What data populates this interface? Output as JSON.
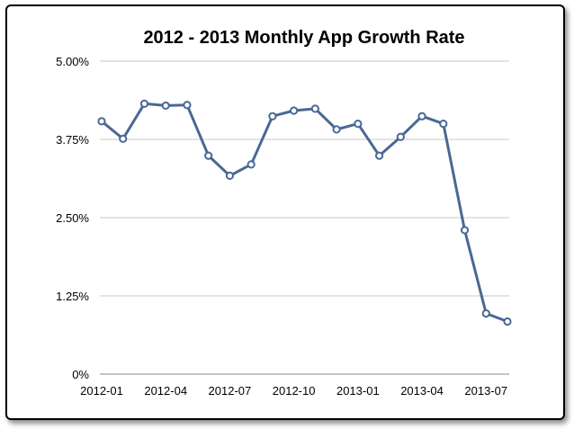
{
  "chart_data": {
    "type": "line",
    "title": "2012 - 2013 Monthly App Growth Rate",
    "xlabel": "",
    "ylabel": "",
    "x": [
      "2012-01",
      "2012-02",
      "2012-03",
      "2012-04",
      "2012-05",
      "2012-06",
      "2012-07",
      "2012-08",
      "2012-09",
      "2012-10",
      "2012-11",
      "2012-12",
      "2013-01",
      "2013-02",
      "2013-03",
      "2013-04",
      "2013-05",
      "2013-06",
      "2013-07",
      "2013-08"
    ],
    "x_tick_labels": [
      "2012-01",
      "2012-04",
      "2012-07",
      "2012-10",
      "2013-01",
      "2013-04",
      "2013-07"
    ],
    "y_tick_labels": [
      "0%",
      "1.25%",
      "2.50%",
      "3.75%",
      "5.00%"
    ],
    "ylim": [
      0,
      5
    ],
    "grid": true,
    "legend": "none",
    "series": [
      {
        "values": [
          4.04,
          3.76,
          4.32,
          4.29,
          4.3,
          3.49,
          3.17,
          3.35,
          4.12,
          4.21,
          4.24,
          3.91,
          4.0,
          3.49,
          3.79,
          4.12,
          4.0,
          2.3,
          0.97,
          0.84
        ],
        "color": "#4a6894"
      }
    ]
  }
}
